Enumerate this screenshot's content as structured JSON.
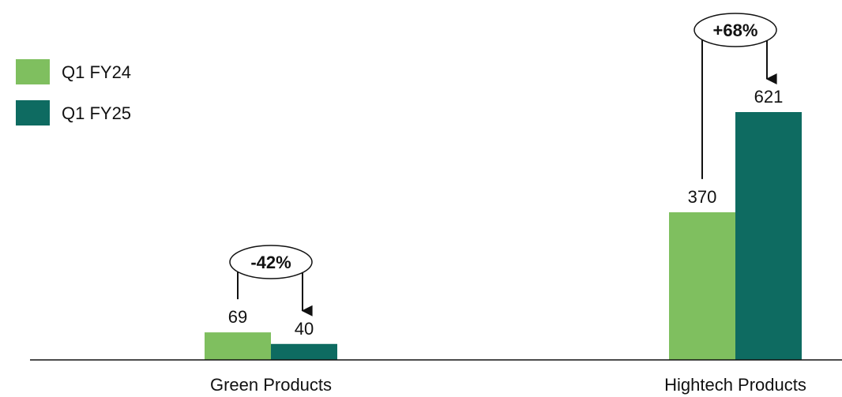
{
  "chart_data": {
    "type": "bar",
    "categories": [
      "Green Products",
      "Hightech Products"
    ],
    "series": [
      {
        "name": "Q1 FY24",
        "color": "#7fbf5f",
        "values": [
          69,
          370
        ]
      },
      {
        "name": "Q1 FY25",
        "color": "#0e6b61",
        "values": [
          40,
          621
        ]
      }
    ],
    "data_labels": [
      [
        "69",
        "40"
      ],
      [
        "370",
        "621"
      ]
    ],
    "annotations": [
      {
        "category": "Green Products",
        "text": "-42%"
      },
      {
        "category": "Hightech Products",
        "text": "+68%"
      }
    ],
    "legend": {
      "position": "top-left"
    },
    "grid": false,
    "title": "",
    "xlabel": "",
    "ylabel": "",
    "ylim": [
      0,
      621
    ]
  }
}
